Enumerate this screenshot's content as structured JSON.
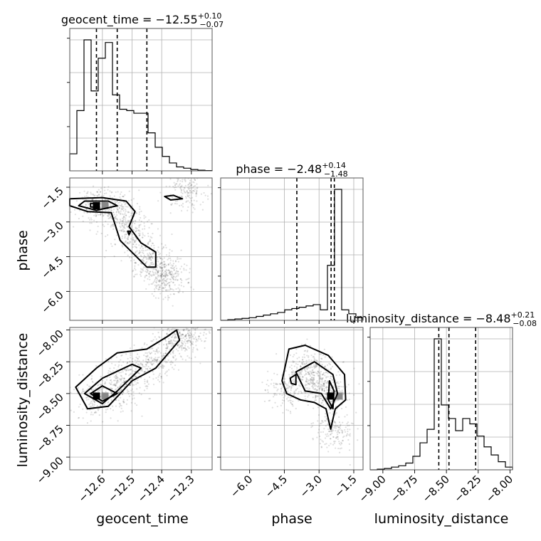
{
  "chart_data": {
    "type": "corner",
    "parameters": [
      "geocent_time",
      "phase",
      "luminosity_distance"
    ],
    "titles": [
      {
        "name": "geocent_time",
        "median": "−12.55",
        "plus": "+0.10",
        "minus": "−0.07"
      },
      {
        "name": "phase",
        "median": "−2.48",
        "plus": "+0.14",
        "minus": "−1.48"
      },
      {
        "name": "luminosity_distance",
        "median": "−8.48",
        "plus": "+0.21",
        "minus": "−0.08"
      }
    ],
    "axis_labels": {
      "x": [
        "geocent_time",
        "phase",
        "luminosity_distance"
      ],
      "y": [
        "phase",
        "luminosity_distance"
      ]
    },
    "ranges": {
      "geocent_time": [
        -12.71,
        -12.23
      ],
      "phase": [
        -7.25,
        -1.1
      ],
      "luminosity_distance": [
        -9.1,
        -7.98
      ]
    },
    "ticks": {
      "geocent_time": [
        "−12.6",
        "−12.5",
        "−12.4",
        "−12.3"
      ],
      "phase": [
        "−6.0",
        "−4.5",
        "−3.0",
        "−1.5"
      ],
      "luminosity_distance": [
        "−9.00",
        "−8.75",
        "−8.50",
        "−8.25",
        "−8.00"
      ]
    },
    "histograms": [
      {
        "param": "geocent_time",
        "bin_edges": [
          -12.71,
          -12.686,
          -12.662,
          -12.638,
          -12.614,
          -12.59,
          -12.566,
          -12.542,
          -12.518,
          -12.494,
          -12.47,
          -12.446,
          -12.422,
          -12.398,
          -12.374,
          -12.35,
          -12.326,
          -12.302,
          -12.278,
          -12.254,
          -12.23
        ],
        "counts": [
          0.13,
          0.46,
          1.0,
          0.61,
          0.86,
          0.98,
          0.58,
          0.47,
          0.46,
          0.44,
          0.44,
          0.29,
          0.18,
          0.11,
          0.06,
          0.03,
          0.02,
          0.01,
          0.005,
          0.002
        ],
        "quantiles": [
          -12.62,
          -12.55,
          -12.45
        ]
      },
      {
        "param": "phase",
        "bin_edges": [
          -7.25,
          -6.9425,
          -6.635,
          -6.3275,
          -6.02,
          -5.7125,
          -5.405,
          -5.0975,
          -4.79,
          -4.4825,
          -4.175,
          -3.8675,
          -3.56,
          -3.2525,
          -2.945,
          -2.6375,
          -2.33,
          -2.0225,
          -1.715,
          -1.4075,
          -1.1
        ],
        "counts": [
          0.0,
          0.005,
          0.01,
          0.015,
          0.02,
          0.03,
          0.04,
          0.05,
          0.06,
          0.08,
          0.09,
          0.1,
          0.11,
          0.12,
          0.08,
          0.42,
          1.0,
          0.08,
          0.05,
          0.02
        ],
        "quantiles": [
          -3.96,
          -2.48,
          -2.34
        ]
      },
      {
        "param": "luminosity_distance",
        "bin_edges": [
          -9.1,
          -9.044,
          -8.988,
          -8.932,
          -8.876,
          -8.82,
          -8.764,
          -8.708,
          -8.652,
          -8.596,
          -8.54,
          -8.484,
          -8.428,
          -8.372,
          -8.316,
          -8.26,
          -8.204,
          -8.148,
          -8.092,
          -8.036,
          -7.98
        ],
        "counts": [
          0.0,
          0.005,
          0.01,
          0.02,
          0.03,
          0.05,
          0.1,
          0.2,
          0.3,
          0.97,
          0.48,
          0.38,
          0.29,
          0.38,
          0.34,
          0.25,
          0.17,
          0.11,
          0.06,
          0.02
        ],
        "quantiles": [
          -8.56,
          -8.48,
          -8.27
        ]
      }
    ],
    "scatter_2d": [
      {
        "x": "geocent_time",
        "y": "phase",
        "samples_center": [
          [
            -12.62,
            -2.3
          ],
          [
            -12.55,
            -2.5
          ],
          [
            -12.5,
            -3.4
          ],
          [
            -12.45,
            -4.5
          ],
          [
            -12.4,
            -5.1
          ],
          [
            -12.38,
            -5.5
          ],
          [
            -12.32,
            -1.6
          ]
        ],
        "density_peak": [
          -12.62,
          -2.3
        ],
        "contours": [
          [
            [
              -12.71,
              -2.0
            ],
            [
              -12.6,
              -1.95
            ],
            [
              -12.52,
              -2.1
            ],
            [
              -12.49,
              -2.55
            ],
            [
              -12.51,
              -3.2
            ],
            [
              -12.47,
              -3.9
            ],
            [
              -12.42,
              -4.3
            ],
            [
              -12.42,
              -4.95
            ],
            [
              -12.45,
              -4.95
            ],
            [
              -12.54,
              -3.8
            ],
            [
              -12.57,
              -2.6
            ],
            [
              -12.65,
              -2.55
            ],
            [
              -12.71,
              -2.3
            ]
          ],
          [
            [
              -12.66,
              -2.1
            ],
            [
              -12.58,
              -2.1
            ],
            [
              -12.55,
              -2.3
            ],
            [
              -12.62,
              -2.5
            ],
            [
              -12.68,
              -2.3
            ]
          ],
          [
            [
              -12.64,
              -2.2
            ],
            [
              -12.62,
              -2.2
            ],
            [
              -12.61,
              -2.35
            ],
            [
              -12.64,
              -2.35
            ]
          ],
          [
            [
              -12.39,
              -1.9
            ],
            [
              -12.36,
              -1.85
            ],
            [
              -12.33,
              -2.0
            ],
            [
              -12.37,
              -2.05
            ]
          ],
          [
            [
              -12.515,
              -3.4
            ],
            [
              -12.505,
              -3.4
            ],
            [
              -12.51,
              -3.55
            ]
          ]
        ]
      },
      {
        "x": "geocent_time",
        "y": "luminosity_distance",
        "samples_center": [
          [
            -12.62,
            -8.52
          ],
          [
            -12.55,
            -8.45
          ],
          [
            -12.5,
            -8.35
          ],
          [
            -12.42,
            -8.25
          ],
          [
            -12.35,
            -8.1
          ],
          [
            -12.3,
            -8.0
          ]
        ],
        "density_peak": [
          -12.62,
          -8.52
        ],
        "contours": [
          [
            [
              -12.69,
              -8.45
            ],
            [
              -12.62,
              -8.3
            ],
            [
              -12.55,
              -8.18
            ],
            [
              -12.45,
              -8.15
            ],
            [
              -12.38,
              -8.05
            ],
            [
              -12.35,
              -8.0
            ],
            [
              -12.34,
              -8.08
            ],
            [
              -12.42,
              -8.3
            ],
            [
              -12.5,
              -8.4
            ],
            [
              -12.58,
              -8.6
            ],
            [
              -12.65,
              -8.62
            ]
          ],
          [
            [
              -12.66,
              -8.5
            ],
            [
              -12.6,
              -8.38
            ],
            [
              -12.5,
              -8.27
            ],
            [
              -12.47,
              -8.3
            ],
            [
              -12.55,
              -8.48
            ],
            [
              -12.6,
              -8.58
            ]
          ],
          [
            [
              -12.64,
              -8.5
            ],
            [
              -12.6,
              -8.44
            ],
            [
              -12.55,
              -8.5
            ],
            [
              -12.6,
              -8.56
            ]
          ]
        ]
      },
      {
        "x": "phase",
        "y": "luminosity_distance",
        "samples_center": [
          [
            -3.5,
            -8.3
          ],
          [
            -2.5,
            -8.5
          ],
          [
            -3.0,
            -8.4
          ],
          [
            -2.4,
            -8.8
          ],
          [
            -4.3,
            -8.45
          ]
        ],
        "density_peak": [
          -2.5,
          -8.52
        ],
        "contours": [
          [
            [
              -4.6,
              -8.4
            ],
            [
              -4.3,
              -8.15
            ],
            [
              -3.6,
              -8.12
            ],
            [
              -2.6,
              -8.2
            ],
            [
              -1.9,
              -8.35
            ],
            [
              -1.85,
              -8.55
            ],
            [
              -2.3,
              -8.62
            ],
            [
              -2.5,
              -8.78
            ],
            [
              -2.7,
              -8.62
            ],
            [
              -3.2,
              -8.57
            ],
            [
              -3.8,
              -8.55
            ],
            [
              -4.4,
              -8.5
            ]
          ],
          [
            [
              -4.0,
              -8.33
            ],
            [
              -3.2,
              -8.25
            ],
            [
              -2.4,
              -8.35
            ],
            [
              -2.2,
              -8.5
            ],
            [
              -2.5,
              -8.62
            ],
            [
              -2.9,
              -8.5
            ],
            [
              -3.6,
              -8.48
            ]
          ],
          [
            [
              -4.25,
              -8.38
            ],
            [
              -4.0,
              -8.35
            ],
            [
              -4.0,
              -8.43
            ],
            [
              -4.2,
              -8.42
            ]
          ],
          [
            [
              -2.55,
              -8.4
            ],
            [
              -2.35,
              -8.48
            ],
            [
              -2.4,
              -8.62
            ],
            [
              -2.6,
              -8.55
            ]
          ]
        ]
      }
    ]
  }
}
